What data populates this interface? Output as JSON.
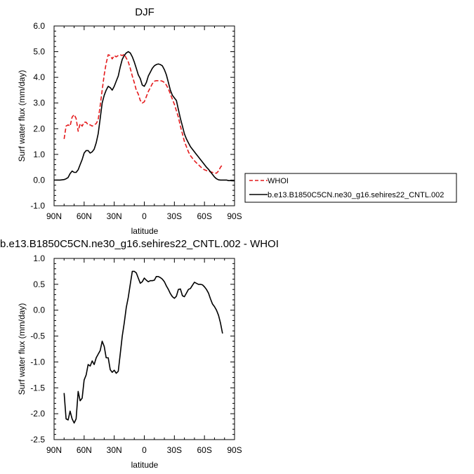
{
  "chart_data": [
    {
      "type": "line",
      "title": "DJF",
      "xlabel": "latitude",
      "ylabel": "Surf water flux (mm/day)",
      "xlim": [
        90,
        -90
      ],
      "ylim": [
        -1.0,
        6.0
      ],
      "x_ticks": [
        90,
        60,
        30,
        0,
        -30,
        -60,
        -90
      ],
      "x_tick_labels": [
        "90N",
        "60N",
        "30N",
        "0",
        "30S",
        "60S",
        "90S"
      ],
      "y_ticks": [
        -1,
        0,
        1,
        2,
        3,
        4,
        5,
        6
      ],
      "y_tick_labels": [
        "-1.0",
        "0.0",
        "1.0",
        "2.0",
        "3.0",
        "4.0",
        "5.0",
        "6.0"
      ],
      "legend_position": "outside-right",
      "series": [
        {
          "name": "WHOI",
          "color": "#e41a1c",
          "dash": "dashed",
          "x": [
            80,
            78,
            76,
            74,
            72,
            70,
            68,
            66,
            64,
            62,
            60,
            58,
            56,
            54,
            52,
            50,
            48,
            46,
            44,
            42,
            40,
            38,
            36,
            34,
            32,
            30,
            28,
            26,
            24,
            22,
            20,
            18,
            16,
            14,
            12,
            10,
            8,
            6,
            4,
            2,
            0,
            -2,
            -4,
            -6,
            -8,
            -10,
            -12,
            -14,
            -16,
            -18,
            -20,
            -22,
            -24,
            -26,
            -28,
            -30,
            -32,
            -34,
            -36,
            -38,
            -40,
            -42,
            -44,
            -46,
            -48,
            -50,
            -52,
            -54,
            -56,
            -58,
            -60,
            -62,
            -64,
            -66,
            -68,
            -70,
            -72,
            -74,
            -76,
            -78
          ],
          "y": [
            1.6,
            2.1,
            2.15,
            2.1,
            2.45,
            2.55,
            2.4,
            1.9,
            2.2,
            2.1,
            2.25,
            2.25,
            2.15,
            2.15,
            2.1,
            2.15,
            2.2,
            2.35,
            2.9,
            3.5,
            4.1,
            4.55,
            4.88,
            4.85,
            4.72,
            4.85,
            4.8,
            4.85,
            4.88,
            4.85,
            4.9,
            4.75,
            4.6,
            4.35,
            4.05,
            3.8,
            3.5,
            3.35,
            3.1,
            3.0,
            3.05,
            3.25,
            3.45,
            3.6,
            3.75,
            3.85,
            3.87,
            3.87,
            3.87,
            3.85,
            3.8,
            3.7,
            3.55,
            3.35,
            3.15,
            2.95,
            2.7,
            2.45,
            2.1,
            1.8,
            1.5,
            1.3,
            1.1,
            0.95,
            0.85,
            0.75,
            0.67,
            0.6,
            0.52,
            0.45,
            0.4,
            0.37,
            0.34,
            0.32,
            0.3,
            0.27,
            0.27,
            0.35,
            0.5,
            0.6
          ]
        },
        {
          "name": "b.e13.B1850C5CN.ne30_g16.sehires22_CNTL.002",
          "color": "#000000",
          "dash": "solid",
          "x": [
            90,
            88,
            86,
            84,
            82,
            80,
            78,
            76,
            74,
            72,
            70,
            68,
            66,
            64,
            62,
            60,
            58,
            56,
            54,
            52,
            50,
            48,
            46,
            44,
            42,
            40,
            38,
            36,
            34,
            32,
            30,
            28,
            26,
            24,
            22,
            20,
            18,
            16,
            14,
            12,
            10,
            8,
            6,
            4,
            2,
            0,
            -2,
            -4,
            -6,
            -8,
            -10,
            -12,
            -14,
            -16,
            -18,
            -20,
            -22,
            -24,
            -26,
            -28,
            -30,
            -32,
            -34,
            -36,
            -38,
            -40,
            -42,
            -44,
            -46,
            -48,
            -50,
            -52,
            -54,
            -56,
            -58,
            -60,
            -62,
            -64,
            -66,
            -68,
            -70,
            -72,
            -74,
            -76,
            -78,
            -80,
            -82,
            -84,
            -86,
            -88,
            -90
          ],
          "y": [
            0.0,
            0.0,
            0.0,
            0.0,
            0.01,
            0.02,
            0.05,
            0.1,
            0.25,
            0.35,
            0.3,
            0.3,
            0.4,
            0.6,
            0.8,
            1.05,
            1.15,
            1.15,
            1.05,
            1.1,
            1.2,
            1.45,
            1.8,
            2.4,
            3.0,
            3.3,
            3.5,
            3.65,
            3.6,
            3.5,
            3.65,
            3.85,
            4.05,
            4.4,
            4.7,
            4.85,
            4.95,
            5.0,
            4.95,
            4.8,
            4.6,
            4.35,
            4.1,
            3.95,
            3.7,
            3.65,
            3.8,
            4.05,
            4.2,
            4.35,
            4.45,
            4.5,
            4.52,
            4.5,
            4.45,
            4.3,
            4.1,
            3.8,
            3.5,
            3.3,
            3.2,
            3.1,
            2.75,
            2.4,
            2.1,
            1.8,
            1.6,
            1.45,
            1.3,
            1.2,
            1.1,
            1.0,
            0.9,
            0.8,
            0.7,
            0.6,
            0.5,
            0.42,
            0.32,
            0.22,
            0.12,
            0.05,
            0.01,
            0.0,
            0.0,
            0.0,
            0.0,
            -0.02,
            -0.02,
            -0.03,
            -0.03
          ]
        }
      ]
    },
    {
      "type": "line",
      "title": "b.e13.B1850C5CN.ne30_g16.sehires22_CNTL.002 - WHOI",
      "xlabel": "latitude",
      "ylabel": "Surf water flux (mm/day)",
      "xlim": [
        90,
        -90
      ],
      "ylim": [
        -2.5,
        1.0
      ],
      "x_ticks": [
        90,
        60,
        30,
        0,
        -30,
        -60,
        -90
      ],
      "x_tick_labels": [
        "90N",
        "60N",
        "30N",
        "0",
        "30S",
        "60S",
        "90S"
      ],
      "y_ticks": [
        -2.5,
        -2.0,
        -1.5,
        -1.0,
        -0.5,
        0.0,
        0.5,
        1.0
      ],
      "y_tick_labels": [
        "-2.5",
        "-2.0",
        "-1.5",
        "-1.0",
        "-0.5",
        "0.0",
        "0.5",
        "1.0"
      ],
      "series": [
        {
          "color": "#000000",
          "dash": "solid",
          "x": [
            80,
            78,
            76,
            74,
            72,
            70,
            68,
            66,
            64,
            62,
            60,
            58,
            56,
            54,
            52,
            50,
            48,
            46,
            44,
            42,
            40,
            38,
            36,
            34,
            32,
            30,
            28,
            26,
            24,
            22,
            20,
            18,
            16,
            14,
            12,
            10,
            8,
            6,
            4,
            2,
            0,
            -2,
            -4,
            -6,
            -8,
            -10,
            -12,
            -14,
            -16,
            -18,
            -20,
            -22,
            -24,
            -26,
            -28,
            -30,
            -32,
            -34,
            -36,
            -38,
            -40,
            -42,
            -44,
            -46,
            -48,
            -50,
            -52,
            -54,
            -56,
            -58,
            -60,
            -62,
            -64,
            -66,
            -68,
            -70,
            -72,
            -74,
            -76,
            -78
          ],
          "y": [
            -1.6,
            -2.1,
            -2.12,
            -1.95,
            -2.1,
            -2.18,
            -2.1,
            -1.57,
            -1.75,
            -1.7,
            -1.35,
            -1.25,
            -1.05,
            -1.08,
            -0.98,
            -1.05,
            -0.92,
            -0.85,
            -0.78,
            -0.6,
            -0.7,
            -0.92,
            -0.92,
            -1.15,
            -1.2,
            -1.16,
            -1.22,
            -1.18,
            -0.85,
            -0.5,
            -0.25,
            0.05,
            0.25,
            0.5,
            0.75,
            0.75,
            0.72,
            0.62,
            0.52,
            0.55,
            0.62,
            0.58,
            0.55,
            0.57,
            0.57,
            0.58,
            0.65,
            0.65,
            0.63,
            0.6,
            0.55,
            0.47,
            0.4,
            0.32,
            0.26,
            0.23,
            0.27,
            0.4,
            0.41,
            0.28,
            0.26,
            0.33,
            0.4,
            0.42,
            0.48,
            0.54,
            0.52,
            0.5,
            0.5,
            0.49,
            0.45,
            0.4,
            0.33,
            0.22,
            0.12,
            0.07,
            0.0,
            -0.1,
            -0.25,
            -0.45
          ]
        }
      ]
    }
  ]
}
